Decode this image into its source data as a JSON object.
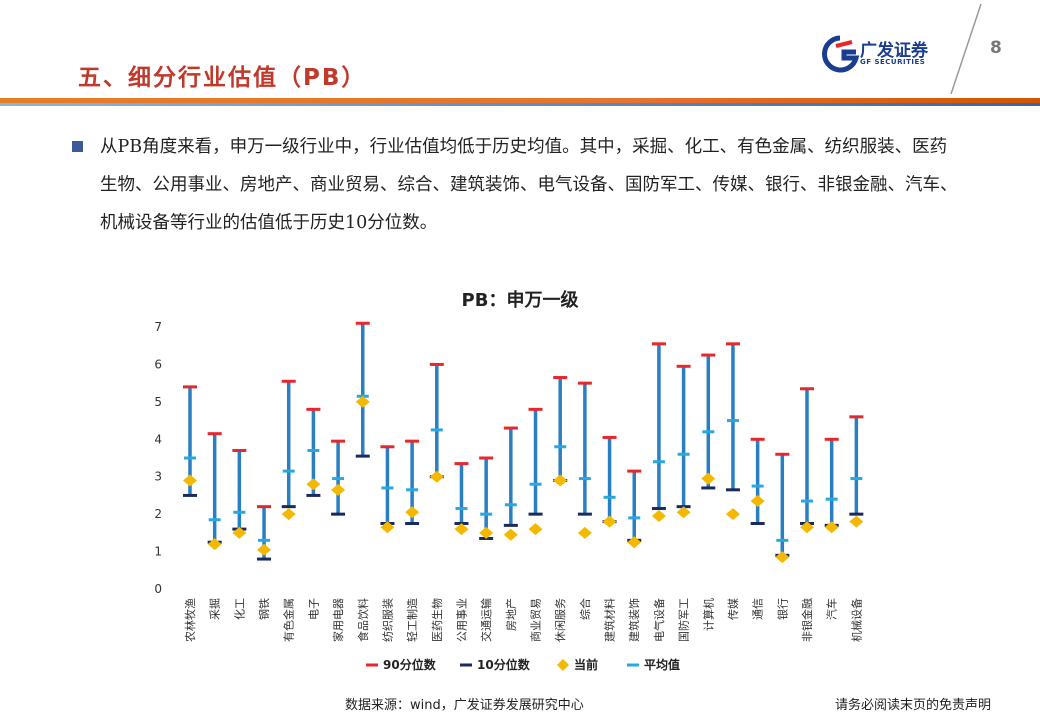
{
  "header": {
    "title": "五、细分行业估值（PB）",
    "logo_cn": "广发证券",
    "logo_en": "GF SECURITIES",
    "page_number": "8"
  },
  "body": {
    "paragraph": "从PB角度来看，申万一级行业中，行业估值均低于历史均值。其中，采掘、化工、有色金属、纺织服装、医药生物、公用事业、房地产、商业贸易、综合、建筑装饰、电气设备、国防军工、传媒、银行、非银金融、汽车、机械设备等行业的估值低于历史10分位数。"
  },
  "footer": {
    "source": "数据来源：wind，广发证券发展研究中心",
    "disclaimer": "请务必阅读末页的免责声明"
  },
  "colors": {
    "p90": "#e8262c",
    "p10": "#1b2a5e",
    "current": "#f5b800",
    "mean": "#29a8e0",
    "range_line": "#2a7fc3"
  },
  "chart_data": {
    "type": "range",
    "title": "PB：申万一级",
    "ylim": [
      0,
      7
    ],
    "yticks": [
      "0",
      "1",
      "2",
      "3",
      "4",
      "5",
      "6",
      "7"
    ],
    "categories": [
      "农林牧渔",
      "采掘",
      "化工",
      "钢铁",
      "有色金属",
      "电子",
      "家用电器",
      "食品饮料",
      "纺织服装",
      "轻工制造",
      "医药生物",
      "公用事业",
      "交通运输",
      "房地产",
      "商业贸易",
      "休闲服务",
      "综合",
      "建筑材料",
      "建筑装饰",
      "电气设备",
      "国防军工",
      "计算机",
      "传媒",
      "通信",
      "银行",
      "非银金融",
      "汽车",
      "机械设备"
    ],
    "series": [
      {
        "name": "90分位数",
        "key": "p90",
        "values": [
          5.4,
          4.15,
          3.7,
          2.2,
          5.55,
          4.8,
          3.95,
          7.1,
          3.8,
          3.95,
          6.0,
          3.35,
          3.5,
          4.3,
          4.8,
          5.65,
          5.5,
          4.05,
          3.15,
          6.55,
          5.95,
          6.25,
          6.55,
          4.0,
          3.6,
          5.35,
          4.0,
          4.6
        ]
      },
      {
        "name": "10分位数",
        "key": "p10",
        "values": [
          2.5,
          1.25,
          1.6,
          0.8,
          2.2,
          2.5,
          2.0,
          3.55,
          1.75,
          1.75,
          3.0,
          1.75,
          1.35,
          1.7,
          2.0,
          2.9,
          2.0,
          1.8,
          1.3,
          2.15,
          2.2,
          2.7,
          2.65,
          1.75,
          0.9,
          1.75,
          1.7,
          2.0
        ]
      },
      {
        "name": "当前",
        "key": "current",
        "values": [
          2.9,
          1.2,
          1.5,
          1.05,
          2.0,
          2.8,
          2.65,
          5.0,
          1.65,
          2.05,
          3.0,
          1.6,
          1.5,
          1.45,
          1.6,
          2.9,
          1.5,
          1.8,
          1.25,
          1.95,
          2.05,
          2.95,
          2.0,
          2.35,
          0.85,
          1.65,
          1.65,
          1.8
        ]
      },
      {
        "name": "平均值",
        "key": "mean",
        "values": [
          3.5,
          1.85,
          2.05,
          1.3,
          3.15,
          3.7,
          2.95,
          5.15,
          2.7,
          2.65,
          4.25,
          2.15,
          2.0,
          2.25,
          2.8,
          3.8,
          2.95,
          2.45,
          1.9,
          3.4,
          3.6,
          4.2,
          4.5,
          2.75,
          1.3,
          2.35,
          2.4,
          2.95
        ]
      }
    ],
    "legend": [
      "90分位数",
      "10分位数",
      "当前",
      "平均值"
    ],
    "legend_position": "bottom"
  }
}
